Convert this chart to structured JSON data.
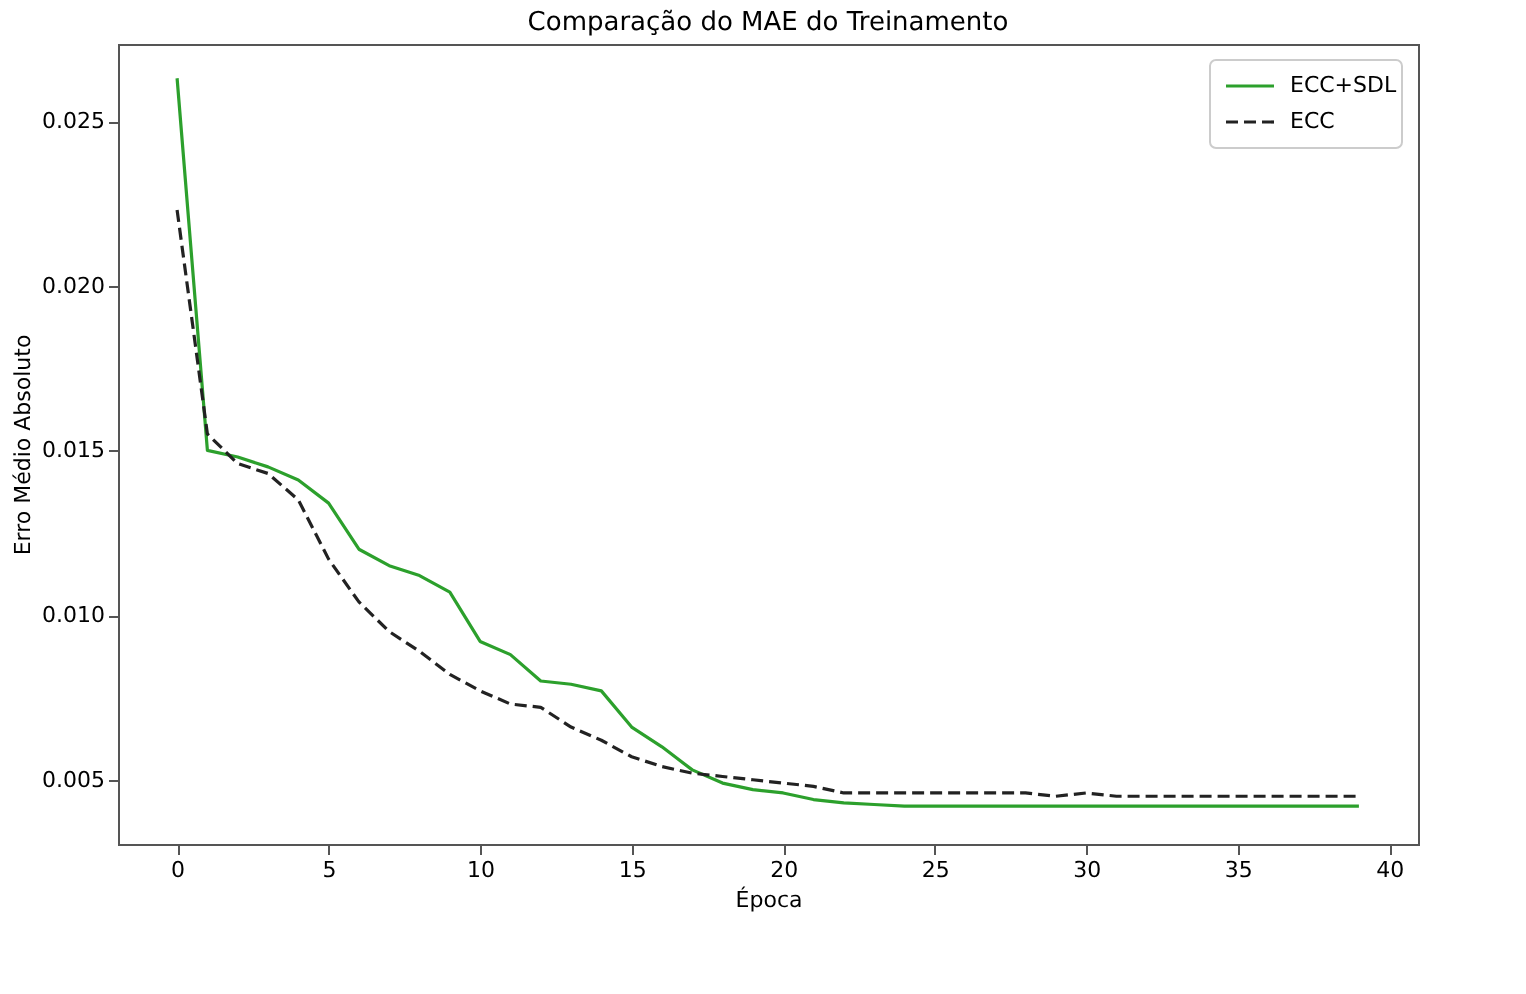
{
  "chart_data": {
    "type": "line",
    "title": "Comparação do MAE do Treinamento",
    "xlabel": "Época",
    "ylabel": "Erro Médio Absoluto",
    "x": [
      0,
      1,
      2,
      3,
      4,
      5,
      6,
      7,
      8,
      9,
      10,
      11,
      12,
      13,
      14,
      15,
      16,
      17,
      18,
      19,
      20,
      21,
      22,
      23,
      24,
      25,
      26,
      27,
      28,
      29,
      30,
      31,
      32,
      33,
      34,
      35,
      36,
      37,
      38,
      39
    ],
    "series": [
      {
        "name": "ECC+SDL",
        "color": "#2ca02c",
        "line_style": "solid",
        "values": [
          0.0263,
          0.015,
          0.0148,
          0.0145,
          0.0141,
          0.0134,
          0.012,
          0.0115,
          0.0112,
          0.0107,
          0.0092,
          0.0088,
          0.008,
          0.0079,
          0.0077,
          0.0066,
          0.006,
          0.0053,
          0.0049,
          0.0047,
          0.0046,
          0.0044,
          0.0043,
          0.00425,
          0.0042,
          0.0042,
          0.0042,
          0.0042,
          0.0042,
          0.0042,
          0.0042,
          0.0042,
          0.0042,
          0.0042,
          0.0042,
          0.0042,
          0.0042,
          0.0042,
          0.0042,
          0.0042
        ]
      },
      {
        "name": "ECC",
        "color": "#222222",
        "line_style": "dashed",
        "values": [
          0.0223,
          0.0155,
          0.0146,
          0.0143,
          0.0135,
          0.0117,
          0.0104,
          0.0095,
          0.0089,
          0.0082,
          0.0077,
          0.0073,
          0.0072,
          0.0066,
          0.0062,
          0.0057,
          0.0054,
          0.0052,
          0.0051,
          0.005,
          0.0049,
          0.0048,
          0.0046,
          0.0046,
          0.0046,
          0.0046,
          0.0046,
          0.0046,
          0.0046,
          0.0045,
          0.0046,
          0.0045,
          0.0045,
          0.0045,
          0.0045,
          0.0045,
          0.0045,
          0.0045,
          0.0045,
          0.0045
        ]
      }
    ],
    "xlim": [
      -1.95,
      40.95
    ],
    "xticks": [
      0,
      5,
      10,
      15,
      20,
      25,
      30,
      35,
      40
    ],
    "ylim": [
      0.00305,
      0.02734
    ],
    "yticks": [
      {
        "value": 0.005,
        "label": "0.005"
      },
      {
        "value": 0.01,
        "label": "0.010"
      },
      {
        "value": 0.015,
        "label": "0.015"
      },
      {
        "value": 0.02,
        "label": "0.020"
      },
      {
        "value": 0.025,
        "label": "0.025"
      }
    ],
    "grid": false,
    "legend": "top right",
    "marker": "none"
  }
}
